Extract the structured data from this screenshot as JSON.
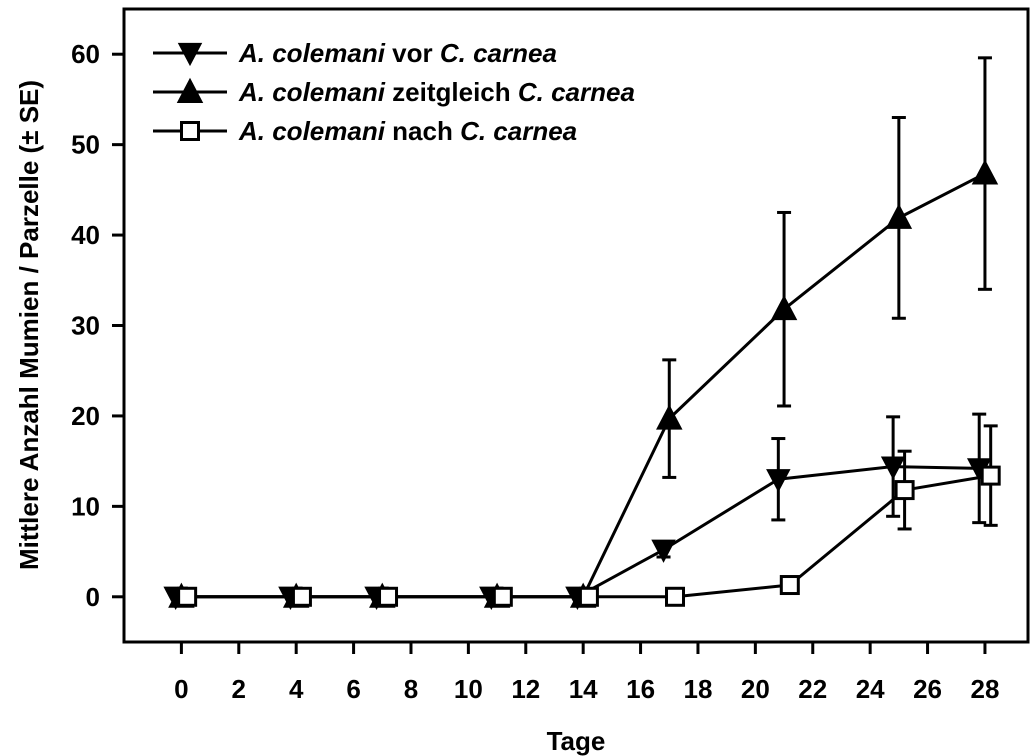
{
  "chart_data": {
    "type": "line",
    "xlabel": "Tage",
    "ylabel": "Mittlere Anzahl Mumien / Parzelle (± SE)",
    "xlim": [
      -2,
      29.5
    ],
    "ylim": [
      -5,
      65
    ],
    "xticks": [
      0,
      2,
      4,
      6,
      8,
      10,
      12,
      14,
      16,
      18,
      20,
      22,
      24,
      26,
      28
    ],
    "yticks": [
      0,
      10,
      20,
      30,
      40,
      50,
      60
    ],
    "grid": false,
    "legend_position": "top-left",
    "series": [
      {
        "name": "A. colemani vor C. carnea",
        "legend_parts": [
          {
            "text": "A. colemani",
            "italic": true
          },
          {
            "text": " vor ",
            "italic": false
          },
          {
            "text": "C. carnea",
            "italic": true
          }
        ],
        "marker": "triangle-down",
        "color": "#000000",
        "x": [
          -0.2,
          3.8,
          6.8,
          10.8,
          13.8,
          16.8,
          20.8,
          24.8,
          27.8
        ],
        "y": [
          0,
          0,
          0,
          0,
          0,
          5.2,
          13.0,
          14.4,
          14.2
        ],
        "err": [
          0,
          0,
          0,
          0,
          0,
          0.8,
          4.5,
          5.5,
          6.0
        ]
      },
      {
        "name": "A. colemani zeitgleich C. carnea",
        "legend_parts": [
          {
            "text": "A. colemani",
            "italic": true
          },
          {
            "text": " zeitgleich ",
            "italic": false
          },
          {
            "text": "C. carnea",
            "italic": true
          }
        ],
        "marker": "triangle-up",
        "color": "#000000",
        "x": [
          0,
          4,
          7,
          11,
          14,
          17,
          21,
          25,
          28
        ],
        "y": [
          0,
          0,
          0,
          0,
          0,
          19.7,
          31.8,
          41.9,
          46.8
        ],
        "err": [
          0,
          0,
          0,
          0,
          0,
          6.5,
          10.7,
          11.1,
          12.8
        ]
      },
      {
        "name": "A. colemani nach C. carnea",
        "legend_parts": [
          {
            "text": "A. colemani",
            "italic": true
          },
          {
            "text": " nach ",
            "italic": false
          },
          {
            "text": "C. carnea",
            "italic": true
          }
        ],
        "marker": "square-open",
        "color": "#000000",
        "x": [
          0.2,
          4.2,
          7.2,
          11.2,
          14.2,
          17.2,
          21.2,
          25.2,
          28.2
        ],
        "y": [
          0,
          0,
          0,
          0,
          0,
          0,
          1.3,
          11.8,
          13.4
        ],
        "err": [
          0,
          0,
          0,
          0,
          0,
          0,
          0.5,
          4.3,
          5.5
        ]
      }
    ]
  }
}
